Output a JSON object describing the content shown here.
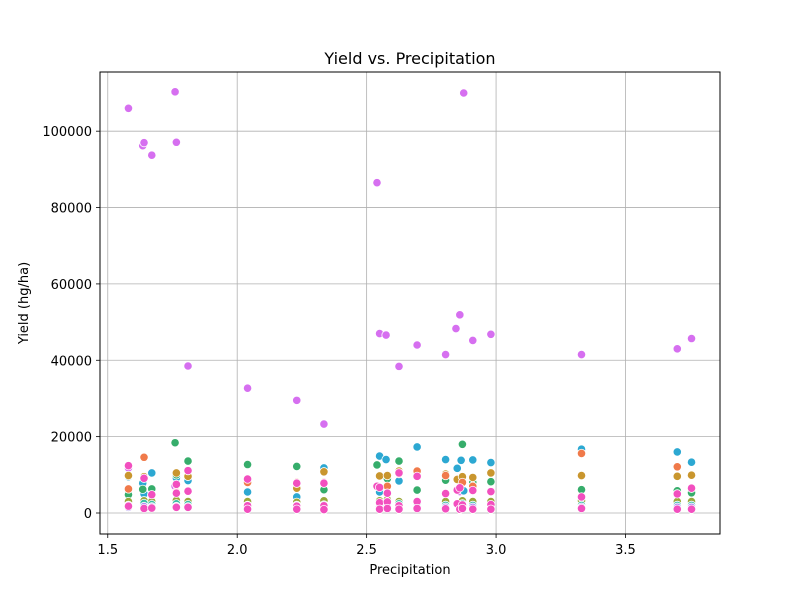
{
  "chart_data": {
    "type": "scatter",
    "title": "Yield vs. Precipitation",
    "xlabel": "Precipitation",
    "ylabel": "Yield (hg/ha)",
    "xlim": [
      1.47,
      3.865
    ],
    "ylim": [
      -5500,
      115500
    ],
    "xticks": [
      1.5,
      2.0,
      2.5,
      3.0,
      3.5
    ],
    "xtick_labels": [
      "1.5",
      "2.0",
      "2.5",
      "3.0",
      "3.5"
    ],
    "yticks": [
      0,
      20000,
      40000,
      60000,
      80000,
      100000
    ],
    "ytick_labels": [
      "0",
      "20000",
      "40000",
      "60000",
      "80000",
      "100000"
    ],
    "grid": true,
    "legend": "none",
    "series": [
      {
        "color": "#d66ff0",
        "points": [
          [
            1.58,
            106000
          ],
          [
            1.635,
            96200
          ],
          [
            1.64,
            97000
          ],
          [
            1.67,
            93700
          ],
          [
            1.76,
            110300
          ],
          [
            1.765,
            97100
          ],
          [
            1.81,
            38500
          ],
          [
            2.04,
            32700
          ],
          [
            2.23,
            29500
          ],
          [
            2.335,
            23300
          ],
          [
            2.54,
            86500
          ],
          [
            2.55,
            47000
          ],
          [
            2.575,
            46600
          ],
          [
            2.625,
            38400
          ],
          [
            2.695,
            44000
          ],
          [
            2.805,
            41500
          ],
          [
            2.845,
            48300
          ],
          [
            2.86,
            51900
          ],
          [
            2.875,
            110000
          ],
          [
            2.91,
            45200
          ],
          [
            2.98,
            46800
          ],
          [
            3.33,
            41500
          ],
          [
            3.7,
            43000
          ],
          [
            3.755,
            45700
          ],
          [
            1.58,
            11800
          ],
          [
            1.76,
            7000
          ],
          [
            2.86,
            5600
          ]
        ]
      },
      {
        "color": "#2ca8d2",
        "points": [
          [
            1.58,
            9500
          ],
          [
            1.635,
            7800
          ],
          [
            1.67,
            10500
          ],
          [
            1.765,
            9200
          ],
          [
            1.81,
            8500
          ],
          [
            2.04,
            5500
          ],
          [
            2.23,
            4200
          ],
          [
            2.335,
            11800
          ],
          [
            2.55,
            14900
          ],
          [
            2.575,
            14000
          ],
          [
            2.625,
            8400
          ],
          [
            2.695,
            17300
          ],
          [
            2.805,
            14000
          ],
          [
            2.85,
            11700
          ],
          [
            2.865,
            13800
          ],
          [
            2.91,
            13900
          ],
          [
            2.98,
            13200
          ],
          [
            3.33,
            16700
          ],
          [
            3.7,
            16000
          ],
          [
            3.755,
            13300
          ],
          [
            1.64,
            5000
          ],
          [
            2.55,
            5500
          ],
          [
            2.875,
            5800
          ]
        ]
      },
      {
        "color": "#36ad6b",
        "points": [
          [
            1.58,
            5200
          ],
          [
            1.635,
            6200
          ],
          [
            1.67,
            6300
          ],
          [
            1.76,
            18400
          ],
          [
            1.81,
            13600
          ],
          [
            2.04,
            12700
          ],
          [
            2.23,
            12200
          ],
          [
            2.335,
            6100
          ],
          [
            2.54,
            12600
          ],
          [
            2.58,
            9000
          ],
          [
            2.625,
            13600
          ],
          [
            2.695,
            6000
          ],
          [
            2.805,
            8600
          ],
          [
            2.87,
            18000
          ],
          [
            2.91,
            8000
          ],
          [
            2.98,
            8200
          ],
          [
            3.33,
            6100
          ],
          [
            3.7,
            5800
          ],
          [
            3.755,
            5300
          ],
          [
            1.58,
            4800
          ],
          [
            1.765,
            10000
          ],
          [
            2.86,
            9000
          ]
        ]
      },
      {
        "color": "#c9962e",
        "points": [
          [
            1.58,
            9800
          ],
          [
            1.64,
            9500
          ],
          [
            1.765,
            10500
          ],
          [
            1.81,
            9600
          ],
          [
            2.04,
            8500
          ],
          [
            2.23,
            6500
          ],
          [
            2.335,
            10800
          ],
          [
            2.55,
            9700
          ],
          [
            2.58,
            9800
          ],
          [
            2.625,
            11000
          ],
          [
            2.695,
            10200
          ],
          [
            2.805,
            10200
          ],
          [
            2.85,
            8800
          ],
          [
            2.87,
            9500
          ],
          [
            2.91,
            9300
          ],
          [
            2.98,
            10500
          ],
          [
            3.33,
            9800
          ],
          [
            3.7,
            9600
          ],
          [
            3.755,
            9900
          ]
        ]
      },
      {
        "color": "#f07a4a",
        "points": [
          [
            1.58,
            6300
          ],
          [
            1.64,
            14600
          ],
          [
            1.67,
            4700
          ],
          [
            1.765,
            5500
          ],
          [
            1.81,
            11200
          ],
          [
            2.04,
            8000
          ],
          [
            2.23,
            8000
          ],
          [
            2.335,
            8000
          ],
          [
            2.55,
            6800
          ],
          [
            2.58,
            7000
          ],
          [
            2.625,
            10300
          ],
          [
            2.695,
            11000
          ],
          [
            2.805,
            9800
          ],
          [
            2.87,
            8000
          ],
          [
            2.91,
            7000
          ],
          [
            2.98,
            5500
          ],
          [
            3.33,
            15600
          ],
          [
            3.7,
            12100
          ],
          [
            3.755,
            6500
          ]
        ]
      },
      {
        "color": "#9aa83a",
        "points": [
          [
            1.58,
            3000
          ],
          [
            1.64,
            3200
          ],
          [
            1.67,
            3000
          ],
          [
            1.765,
            3300
          ],
          [
            1.81,
            3000
          ],
          [
            2.04,
            3000
          ],
          [
            2.23,
            2800
          ],
          [
            2.335,
            3200
          ],
          [
            2.55,
            3200
          ],
          [
            2.58,
            3500
          ],
          [
            2.625,
            3000
          ],
          [
            2.695,
            3000
          ],
          [
            2.805,
            3000
          ],
          [
            2.87,
            3200
          ],
          [
            2.91,
            3000
          ],
          [
            2.98,
            3000
          ],
          [
            3.33,
            3200
          ],
          [
            3.7,
            3000
          ],
          [
            3.755,
            3000
          ]
        ]
      },
      {
        "color": "#3bbfa3",
        "points": [
          [
            1.58,
            2000
          ],
          [
            1.64,
            2500
          ],
          [
            1.67,
            2200
          ],
          [
            1.765,
            2400
          ],
          [
            1.81,
            2200
          ],
          [
            2.04,
            2000
          ],
          [
            2.23,
            2000
          ],
          [
            2.335,
            2100
          ],
          [
            2.55,
            2300
          ],
          [
            2.58,
            2200
          ],
          [
            2.625,
            2400
          ],
          [
            2.695,
            2100
          ],
          [
            2.805,
            2000
          ],
          [
            2.87,
            2400
          ],
          [
            2.91,
            2000
          ],
          [
            2.98,
            2100
          ],
          [
            3.33,
            2000
          ],
          [
            3.7,
            2000
          ],
          [
            3.755,
            2000
          ]
        ]
      },
      {
        "color": "#a78cf0",
        "points": [
          [
            1.58,
            1500
          ],
          [
            1.64,
            1700
          ],
          [
            1.67,
            1600
          ],
          [
            1.765,
            1700
          ],
          [
            1.81,
            1600
          ],
          [
            2.04,
            1500
          ],
          [
            2.23,
            1500
          ],
          [
            2.335,
            1500
          ],
          [
            2.55,
            1600
          ],
          [
            2.58,
            1700
          ],
          [
            2.625,
            1500
          ],
          [
            2.695,
            1500
          ],
          [
            2.805,
            1500
          ],
          [
            2.87,
            1700
          ],
          [
            2.91,
            1500
          ],
          [
            2.98,
            1500
          ],
          [
            3.33,
            1500
          ],
          [
            3.7,
            1500
          ],
          [
            3.755,
            1500
          ]
        ]
      },
      {
        "color": "#f24fbf",
        "points": [
          [
            1.58,
            12400
          ],
          [
            1.58,
            1800
          ],
          [
            1.64,
            9100
          ],
          [
            1.64,
            1200
          ],
          [
            1.67,
            4800
          ],
          [
            1.67,
            1300
          ],
          [
            1.765,
            7500
          ],
          [
            1.765,
            5200
          ],
          [
            1.765,
            1500
          ],
          [
            1.81,
            11100
          ],
          [
            1.81,
            5700
          ],
          [
            1.81,
            1500
          ],
          [
            2.04,
            8900
          ],
          [
            2.04,
            1900
          ],
          [
            2.04,
            1000
          ],
          [
            2.23,
            7800
          ],
          [
            2.23,
            1800
          ],
          [
            2.23,
            1000
          ],
          [
            2.335,
            7800
          ],
          [
            2.335,
            1900
          ],
          [
            2.335,
            900
          ],
          [
            2.54,
            7000
          ],
          [
            2.55,
            6700
          ],
          [
            2.55,
            2700
          ],
          [
            2.55,
            1000
          ],
          [
            2.58,
            5200
          ],
          [
            2.58,
            2900
          ],
          [
            2.58,
            1200
          ],
          [
            2.625,
            10500
          ],
          [
            2.625,
            1900
          ],
          [
            2.625,
            1000
          ],
          [
            2.695,
            9600
          ],
          [
            2.695,
            3000
          ],
          [
            2.695,
            1200
          ],
          [
            2.805,
            5100
          ],
          [
            2.805,
            1100
          ],
          [
            2.85,
            6000
          ],
          [
            2.85,
            2400
          ],
          [
            2.86,
            6600
          ],
          [
            2.86,
            1000
          ],
          [
            2.87,
            2100
          ],
          [
            2.87,
            1200
          ],
          [
            2.91,
            5900
          ],
          [
            2.91,
            1000
          ],
          [
            2.98,
            5600
          ],
          [
            2.98,
            2200
          ],
          [
            2.98,
            1000
          ],
          [
            3.33,
            4200
          ],
          [
            3.33,
            1200
          ],
          [
            3.7,
            5000
          ],
          [
            3.7,
            1000
          ],
          [
            3.755,
            6500
          ],
          [
            3.755,
            1000
          ]
        ]
      }
    ]
  }
}
